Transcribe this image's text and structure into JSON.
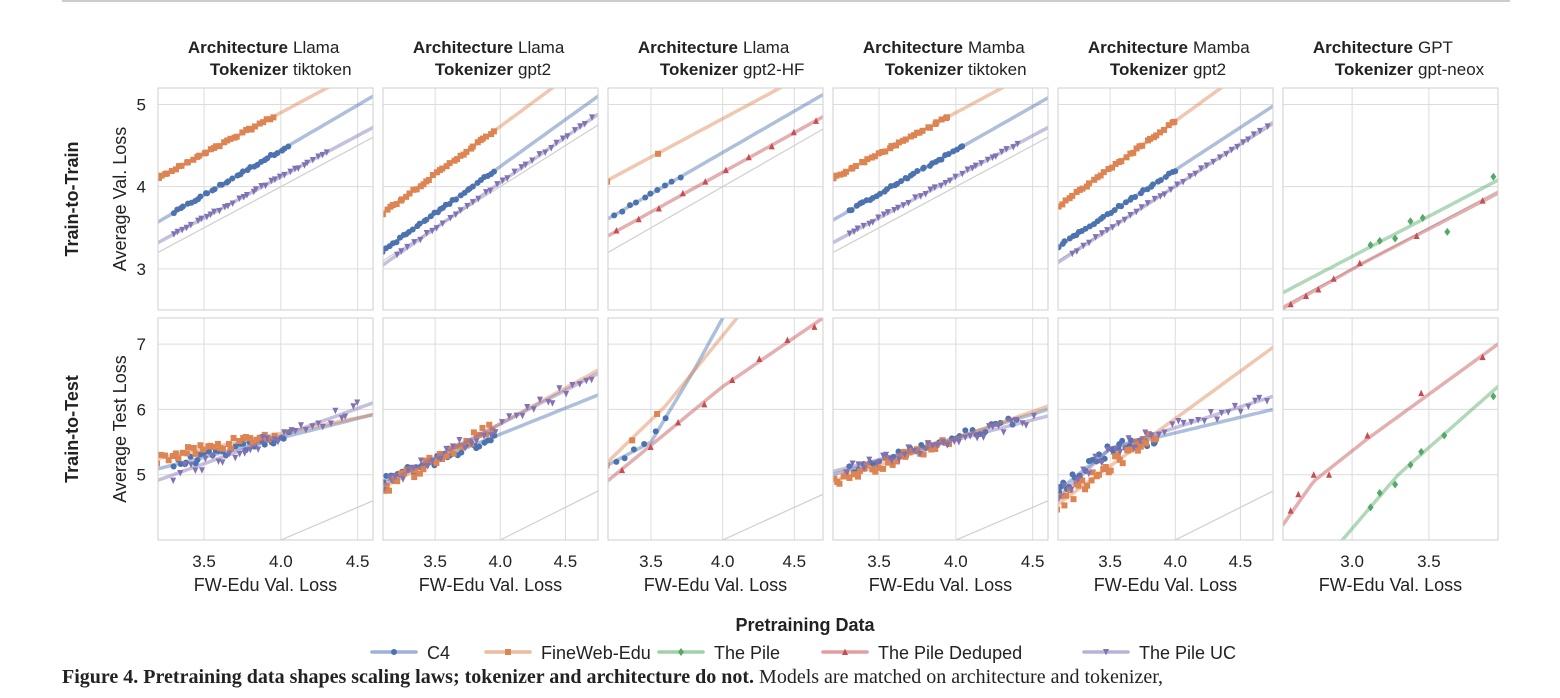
{
  "chart_data": {
    "type": "scatter",
    "rows": [
      {
        "label": "Train-to-Train",
        "ylabel": "Average Val. Loss",
        "ylim": [
          2.5,
          5.2
        ],
        "yticks": [
          3,
          4,
          5
        ]
      },
      {
        "label": "Train-to-Test",
        "ylabel": "Average Test Loss",
        "ylim": [
          4.0,
          7.4
        ],
        "yticks": [
          5,
          6,
          7
        ]
      }
    ],
    "xlabel": "FW-Edu Val. Loss",
    "legend_title": "Pretraining Data",
    "legend_position": "bottom",
    "grid": true,
    "series_styles": [
      {
        "name": "C4",
        "color": "#4c72b0",
        "marker": "circle"
      },
      {
        "name": "FineWeb-Edu",
        "color": "#dd8452",
        "marker": "square"
      },
      {
        "name": "The Pile",
        "color": "#55a868",
        "marker": "diamond"
      },
      {
        "name": "The Pile Deduped",
        "color": "#c44e52",
        "marker": "triangle-up"
      },
      {
        "name": "The Pile UC",
        "color": "#8172b3",
        "marker": "triangle-down"
      }
    ],
    "panels": [
      {
        "arch_label": "Architecture",
        "arch": "Llama",
        "tok_label": "Tokenizer",
        "tok": "tiktoken",
        "xlim": [
          3.2,
          4.6
        ],
        "xticks": [
          "3.5",
          "4.0",
          "4.5"
        ],
        "train": [
          {
            "series": "C4",
            "x0": 3.3,
            "x1": 4.05,
            "fit": [
              [
                3.3,
                3.68
              ],
              [
                4.6,
                5.1
              ]
            ]
          },
          {
            "series": "FineWeb-Edu",
            "x0": 3.2,
            "x1": 3.95,
            "fit": [
              [
                3.2,
                4.1
              ],
              [
                4.3,
                5.2
              ]
            ]
          },
          {
            "series": "The Pile UC",
            "x0": 3.3,
            "x1": 4.3,
            "fit": [
              [
                3.3,
                3.42
              ],
              [
                4.6,
                4.72
              ]
            ]
          }
        ],
        "test": [
          {
            "series": "C4",
            "x0": 3.3,
            "x1": 4.05,
            "fit": [
              [
                3.3,
                5.15
              ],
              [
                4.6,
                5.92
              ]
            ],
            "noise": 0.07
          },
          {
            "series": "FineWeb-Edu",
            "x0": 3.2,
            "x1": 3.95,
            "fit": [
              [
                3.2,
                5.25
              ],
              [
                4.6,
                5.92
              ]
            ],
            "noise": 0.08
          },
          {
            "series": "The Pile UC",
            "x0": 3.3,
            "x1": 4.5,
            "fit": [
              [
                3.3,
                5.0
              ],
              [
                4.6,
                6.1
              ]
            ],
            "noise": 0.1
          }
        ]
      },
      {
        "arch_label": "Architecture",
        "arch": "Llama",
        "tok_label": "Tokenizer",
        "tok": "gpt2",
        "xlim": [
          3.1,
          4.75
        ],
        "xticks": [
          "3.5",
          "4.0",
          "4.5"
        ],
        "train": [
          {
            "series": "C4",
            "x0": 3.1,
            "x1": 3.95,
            "fit": [
              [
                3.1,
                3.22
              ],
              [
                4.75,
                5.1
              ]
            ]
          },
          {
            "series": "FineWeb-Edu",
            "x0": 3.1,
            "x1": 3.95,
            "fit": [
              [
                3.1,
                3.68
              ],
              [
                4.4,
                5.2
              ]
            ]
          },
          {
            "series": "The Pile UC",
            "x0": 3.2,
            "x1": 4.7,
            "fit": [
              [
                3.2,
                3.16
              ],
              [
                4.75,
                4.88
              ]
            ]
          }
        ],
        "test": [
          {
            "series": "C4",
            "x0": 3.1,
            "x1": 3.95,
            "fit": [
              [
                3.1,
                4.9
              ],
              [
                4.75,
                6.22
              ]
            ],
            "noise": 0.08
          },
          {
            "series": "FineWeb-Edu",
            "x0": 3.1,
            "x1": 3.95,
            "fit": [
              [
                3.1,
                4.8
              ],
              [
                4.75,
                6.6
              ]
            ],
            "noise": 0.1
          },
          {
            "series": "The Pile UC",
            "x0": 3.1,
            "x1": 4.7,
            "fit": [
              [
                3.1,
                4.85
              ],
              [
                4.75,
                6.55
              ]
            ],
            "noise": 0.1
          }
        ]
      },
      {
        "arch_label": "Architecture",
        "arch": "Llama",
        "tok_label": "Tokenizer",
        "tok": "gpt2-HF",
        "xlim": [
          3.2,
          4.7
        ],
        "xticks": [
          "3.5",
          "4.0",
          "4.5"
        ],
        "train": [
          {
            "series": "C4",
            "x0": 3.25,
            "x1": 3.7,
            "n": 10,
            "fit": [
              [
                3.25,
                3.66
              ],
              [
                4.7,
                5.12
              ]
            ]
          },
          {
            "series": "FineWeb-Edu",
            "x0": 3.2,
            "x1": 3.55,
            "n": 2,
            "fit": [
              [
                3.2,
                4.08
              ],
              [
                4.4,
                5.2
              ]
            ]
          },
          {
            "series": "The Pile Deduped",
            "x0": 3.25,
            "x1": 4.65,
            "n": 10,
            "fit": [
              [
                3.25,
                3.45
              ],
              [
                4.7,
                4.85
              ]
            ]
          }
        ],
        "test": [
          {
            "series": "C4",
            "x0": 3.25,
            "x1": 3.6,
            "n": 6,
            "fit": [
              [
                3.2,
                5.15
              ],
              [
                3.5,
                5.5
              ],
              [
                3.8,
                6.6
              ],
              [
                4.0,
                7.4
              ]
            ],
            "noise": 0.05
          },
          {
            "series": "FineWeb-Edu",
            "x0": 3.2,
            "x1": 3.55,
            "n": 3,
            "fit": [
              [
                3.2,
                5.2
              ],
              [
                3.6,
                6.05
              ],
              [
                4.1,
                7.4
              ]
            ],
            "noise": 0.05
          },
          {
            "series": "The Pile Deduped",
            "x0": 3.3,
            "x1": 4.65,
            "n": 8,
            "fit": [
              [
                3.25,
                5.0
              ],
              [
                4.0,
                6.35
              ],
              [
                4.7,
                7.4
              ]
            ],
            "noise": 0.05
          }
        ]
      },
      {
        "arch_label": "Architecture",
        "arch": "Mamba",
        "tok_label": "Tokenizer",
        "tok": "tiktoken",
        "xlim": [
          3.2,
          4.6
        ],
        "xticks": [
          "3.5",
          "4.0",
          "4.5"
        ],
        "train": [
          {
            "series": "C4",
            "x0": 3.3,
            "x1": 4.05,
            "fit": [
              [
                3.3,
                3.7
              ],
              [
                4.6,
                5.08
              ]
            ]
          },
          {
            "series": "FineWeb-Edu",
            "x0": 3.2,
            "x1": 3.95,
            "fit": [
              [
                3.2,
                4.1
              ],
              [
                4.3,
                5.2
              ]
            ]
          },
          {
            "series": "The Pile UC",
            "x0": 3.3,
            "x1": 4.4,
            "fit": [
              [
                3.3,
                3.42
              ],
              [
                4.6,
                4.72
              ]
            ]
          }
        ],
        "test": [
          {
            "series": "C4",
            "x0": 3.3,
            "x1": 4.4,
            "fit": [
              [
                3.2,
                5.0
              ],
              [
                4.6,
                6.0
              ]
            ],
            "noise": 0.07
          },
          {
            "series": "FineWeb-Edu",
            "x0": 3.2,
            "x1": 3.95,
            "fit": [
              [
                3.2,
                4.9
              ],
              [
                4.6,
                6.05
              ]
            ],
            "noise": 0.08
          },
          {
            "series": "The Pile UC",
            "x0": 3.3,
            "x1": 4.5,
            "fit": [
              [
                3.2,
                5.05
              ],
              [
                4.6,
                5.9
              ]
            ],
            "noise": 0.08
          }
        ]
      },
      {
        "arch_label": "Architecture",
        "arch": "Mamba",
        "tok_label": "Tokenizer",
        "tok": "gpt2",
        "xlim": [
          3.1,
          4.75
        ],
        "xticks": [
          "3.5",
          "4.0",
          "4.5"
        ],
        "train": [
          {
            "series": "C4",
            "x0": 3.1,
            "x1": 4.0,
            "fit": [
              [
                3.1,
                3.27
              ],
              [
                4.75,
                4.98
              ]
            ]
          },
          {
            "series": "FineWeb-Edu",
            "x0": 3.1,
            "x1": 4.0,
            "fit": [
              [
                3.1,
                3.76
              ],
              [
                4.35,
                5.2
              ]
            ]
          },
          {
            "series": "The Pile UC",
            "x0": 3.2,
            "x1": 4.7,
            "fit": [
              [
                3.2,
                3.18
              ],
              [
                4.75,
                4.78
              ]
            ]
          }
        ],
        "test": [
          {
            "series": "C4",
            "x0": 3.1,
            "x1": 3.85,
            "fit": [
              [
                3.1,
                4.75
              ],
              [
                3.5,
                5.4
              ],
              [
                4.75,
                6.0
              ]
            ],
            "noise": 0.1
          },
          {
            "series": "FineWeb-Edu",
            "x0": 3.1,
            "x1": 3.85,
            "fit": [
              [
                3.1,
                4.55
              ],
              [
                4.75,
                6.95
              ]
            ],
            "noise": 0.1
          },
          {
            "series": "The Pile UC",
            "x0": 3.1,
            "x1": 4.7,
            "fit": [
              [
                3.1,
                4.65
              ],
              [
                3.5,
                5.4
              ],
              [
                4.75,
                6.2
              ]
            ],
            "noise": 0.1
          }
        ]
      },
      {
        "arch_label": "Architecture",
        "arch": "GPT",
        "tok_label": "Tokenizer",
        "tok": "gpt-neox",
        "xlim": [
          2.55,
          3.95
        ],
        "xticks": [
          "3.0",
          "3.5"
        ],
        "train": [
          {
            "series": "The Pile",
            "pts": [
              [
                3.12,
                3.29
              ],
              [
                3.18,
                3.34
              ],
              [
                3.28,
                3.37
              ],
              [
                3.38,
                3.58
              ],
              [
                3.46,
                3.62
              ],
              [
                3.62,
                3.45
              ],
              [
                3.92,
                4.12
              ]
            ],
            "fit": [
              [
                3.05,
                3.2
              ],
              [
                3.95,
                4.08
              ]
            ]
          },
          {
            "series": "The Pile Deduped",
            "pts": [
              [
                2.6,
                2.57
              ],
              [
                2.7,
                2.67
              ],
              [
                2.78,
                2.75
              ],
              [
                2.88,
                2.88
              ],
              [
                3.05,
                3.07
              ],
              [
                3.42,
                3.4
              ],
              [
                3.85,
                3.83
              ]
            ],
            "fit": [
              [
                2.55,
                2.52
              ],
              [
                3.1,
                3.1
              ],
              [
                3.95,
                3.92
              ]
            ]
          }
        ],
        "test": [
          {
            "series": "The Pile",
            "pts": [
              [
                3.12,
                4.5
              ],
              [
                3.18,
                4.72
              ],
              [
                3.28,
                4.85
              ],
              [
                3.38,
                5.15
              ],
              [
                3.45,
                5.35
              ],
              [
                3.6,
                5.6
              ],
              [
                3.92,
                6.2
              ]
            ],
            "fit": [
              [
                3.1,
                4.45
              ],
              [
                3.3,
                5.0
              ],
              [
                3.95,
                6.35
              ]
            ]
          },
          {
            "series": "The Pile Deduped",
            "pts": [
              [
                2.6,
                4.45
              ],
              [
                2.65,
                4.7
              ],
              [
                2.75,
                5.0
              ],
              [
                2.85,
                5.0
              ],
              [
                3.1,
                5.6
              ],
              [
                3.45,
                6.25
              ],
              [
                3.85,
                6.8
              ]
            ],
            "fit": [
              [
                2.6,
                4.4
              ],
              [
                2.75,
                4.9
              ],
              [
                3.1,
                5.55
              ],
              [
                3.95,
                7.0
              ]
            ]
          }
        ]
      }
    ]
  },
  "caption": {
    "prefix": "Figure 4.",
    "bold": "Pretraining data shapes scaling laws; tokenizer and architecture do not.",
    "text": "Models are matched on architecture and tokenizer,"
  }
}
